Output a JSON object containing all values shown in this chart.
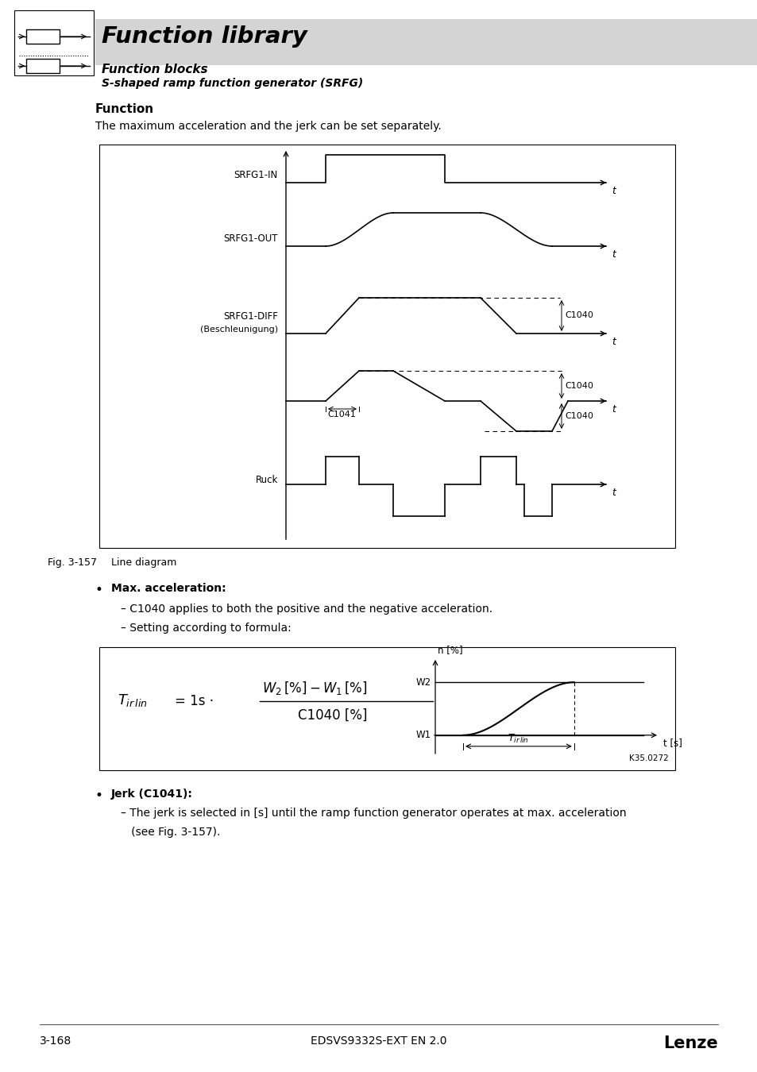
{
  "title": "Function library",
  "subtitle1": "Function blocks",
  "subtitle2": "S-shaped ramp function generator (SRFG)",
  "section_title": "Function",
  "section_text": "The maximum acceleration and the jerk can be set separately.",
  "fig_label": "Fig. 3-157",
  "fig_desc": "Line diagram",
  "bullet1": "Max. acceleration:",
  "sub1a": "– C1040 applies to both the positive and the negative acceleration.",
  "sub1b": "– Setting according to formula:",
  "bullet2": "Jerk (C1041):",
  "sub2a": "– The jerk is selected in [s] until the ramp function generator operates at max. acceleration",
  "sub2b": "   (see Fig. 3-157).",
  "footer_left": "3-168",
  "footer_center": "EDSVS9332S-EXT EN 2.0",
  "footer_right": "Lenze",
  "bg_color": "#ffffff",
  "header_bg": "#d4d4d4",
  "line_color": "#000000"
}
